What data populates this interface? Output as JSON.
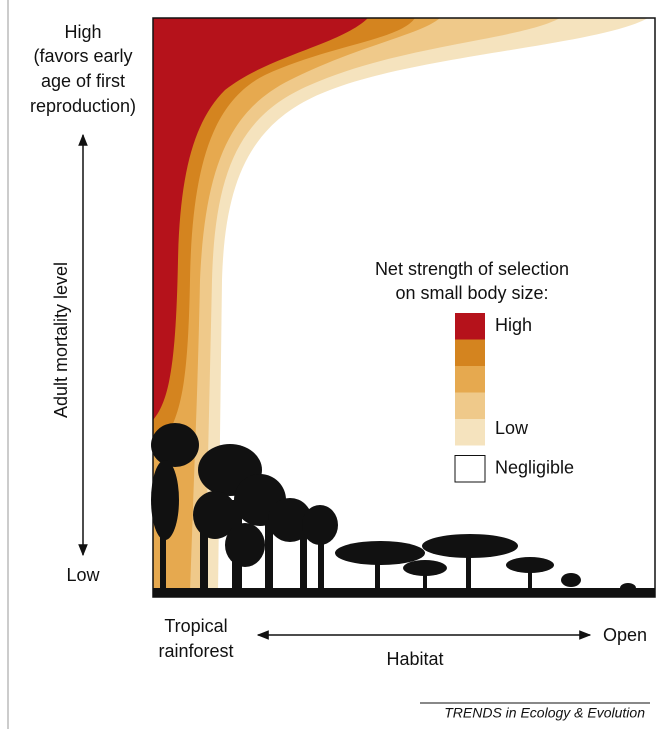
{
  "y_axis": {
    "high_label": [
      "High",
      "(favors early",
      "age of first",
      "reproduction)"
    ],
    "title": "Adult mortality level",
    "low_label": "Low"
  },
  "x_axis": {
    "left_label": [
      "Tropical",
      "rainforest"
    ],
    "title": "Habitat",
    "right_label": "Open"
  },
  "legend": {
    "title": [
      "Net strength of selection",
      "on small body size:"
    ],
    "swatches": [
      "#b5121b",
      "#d4841f",
      "#e6a94f",
      "#efc98a",
      "#f5e3be",
      "#ffffff"
    ],
    "high_label": "High",
    "low_label": "Low",
    "negligible_label": "Negligible"
  },
  "footer": "TRENDS in Ecology & Evolution"
}
